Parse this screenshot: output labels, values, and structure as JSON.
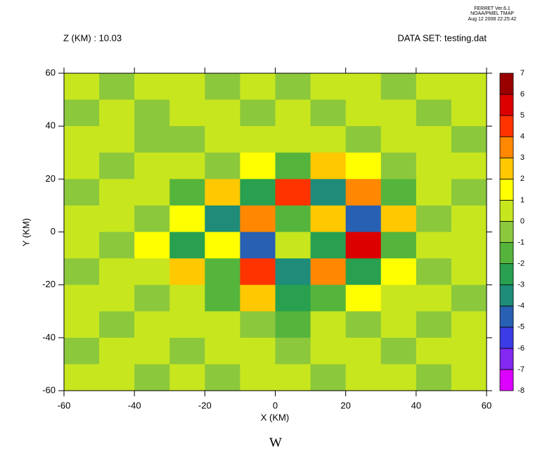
{
  "chart_data": {
    "type": "contour",
    "header": [
      "FERRET Ver.6.1",
      "NOAA/PMEL TMAP",
      "Aug 12 2008 22:25:42"
    ],
    "title_left": "Z (KM) : 10.03",
    "title_right": "DATA SET: testing.dat",
    "xlabel": "X (KM)",
    "ylabel": "Y (KM)",
    "caption": "W",
    "xlim": [
      -60,
      60
    ],
    "ylim": [
      -60,
      60
    ],
    "xticks": [
      -60,
      -40,
      -20,
      0,
      20,
      40,
      60
    ],
    "yticks": [
      -60,
      -40,
      -20,
      0,
      20,
      40,
      60
    ],
    "x": [
      -55,
      -45,
      -35,
      -25,
      -15,
      -5,
      5,
      15,
      25,
      35,
      45,
      55
    ],
    "y": [
      55,
      45,
      35,
      25,
      15,
      5,
      -5,
      -15,
      -25,
      -35,
      -45,
      -55
    ],
    "z": [
      [
        0.5,
        -0.5,
        0.5,
        0.5,
        -0.5,
        0.5,
        -0.5,
        0.5,
        0.5,
        -0.5,
        0.5,
        0.5
      ],
      [
        -0.5,
        0.5,
        -0.5,
        0.5,
        0.5,
        -0.5,
        0.5,
        -0.5,
        0.5,
        0.5,
        -0.5,
        0.5
      ],
      [
        0.5,
        0.5,
        -0.5,
        -0.5,
        0.5,
        0.5,
        0.5,
        0.5,
        -0.5,
        0.5,
        0.5,
        -0.5
      ],
      [
        0.5,
        -0.5,
        0.5,
        0.5,
        -0.5,
        1.5,
        -1.5,
        2.5,
        1.5,
        -0.5,
        0.5,
        0.5
      ],
      [
        -0.5,
        0.5,
        0.5,
        -1.5,
        2.5,
        -2.5,
        4.5,
        -3.5,
        3.5,
        -1.5,
        0.5,
        -0.5
      ],
      [
        0.5,
        0.5,
        -0.5,
        1.5,
        -3.5,
        3.5,
        -1.5,
        2.5,
        -4.5,
        2.5,
        -0.5,
        0.5
      ],
      [
        0.5,
        -0.5,
        1.5,
        -2.5,
        1.5,
        -4.5,
        0.5,
        -2.5,
        5.5,
        -1.5,
        0.5,
        0.5
      ],
      [
        -0.5,
        0.5,
        0.5,
        2.5,
        -1.5,
        4.5,
        -3.5,
        3.5,
        -2.5,
        1.5,
        -0.5,
        0.5
      ],
      [
        0.5,
        0.5,
        -0.5,
        0.5,
        -1.5,
        2.5,
        -2.5,
        -1.5,
        1.5,
        0.5,
        0.5,
        -0.5
      ],
      [
        0.5,
        -0.5,
        0.5,
        0.5,
        0.5,
        -0.5,
        -1.5,
        0.5,
        -0.5,
        0.5,
        -0.5,
        0.5
      ],
      [
        -0.5,
        0.5,
        0.5,
        -0.5,
        0.5,
        0.5,
        -0.5,
        0.5,
        0.5,
        -0.5,
        0.5,
        0.5
      ],
      [
        0.5,
        0.5,
        -0.5,
        0.5,
        -0.5,
        0.5,
        0.5,
        -0.5,
        0.5,
        0.5,
        -0.5,
        0.5
      ]
    ],
    "levels": [
      -8,
      -7,
      -6,
      -5,
      -4,
      -3,
      -2,
      -1,
      0,
      1,
      2,
      3,
      4,
      5,
      6,
      7
    ],
    "colors": [
      "#dc00ff",
      "#8228f0",
      "#3c3ce6",
      "#2860b4",
      "#1e8c78",
      "#28a050",
      "#55b43c",
      "#8cc83c",
      "#c8e61e",
      "#ffff00",
      "#ffc800",
      "#ff8800",
      "#ff3300",
      "#dd0000",
      "#990000"
    ]
  }
}
